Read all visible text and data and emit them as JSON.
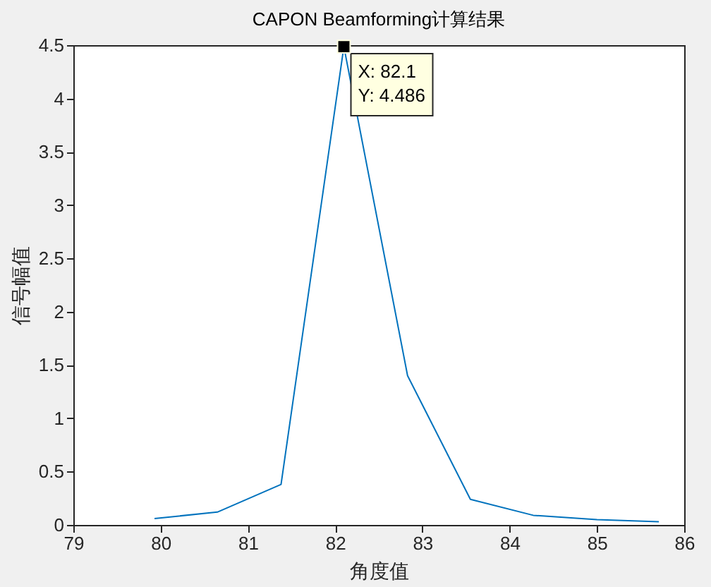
{
  "chart_data": {
    "type": "line",
    "title": "CAPON Beamforming计算结果",
    "xlabel": "角度值",
    "ylabel": "信号幅值",
    "x": [
      79.93,
      80.65,
      81.38,
      82.1,
      82.83,
      83.55,
      84.27,
      85.0,
      85.71
    ],
    "series": [
      {
        "color": "#0072bd",
        "values": [
          0.06,
          0.12,
          0.38,
          4.486,
          1.4,
          0.24,
          0.09,
          0.05,
          0.03
        ]
      }
    ],
    "xlim": [
      79,
      86
    ],
    "xticks": [
      79,
      80,
      81,
      82,
      83,
      84,
      85,
      86
    ],
    "ylim": [
      0,
      4.5
    ],
    "yticks": [
      0,
      0.5,
      1,
      1.5,
      2,
      2.5,
      3,
      3.5,
      4,
      4.5
    ],
    "grid": false,
    "marker": "none",
    "line_style": "solid",
    "annotations": [
      {
        "text": "X: 82.1\nY: 4.486",
        "x": 82.1,
        "y": 4.486
      }
    ]
  }
}
